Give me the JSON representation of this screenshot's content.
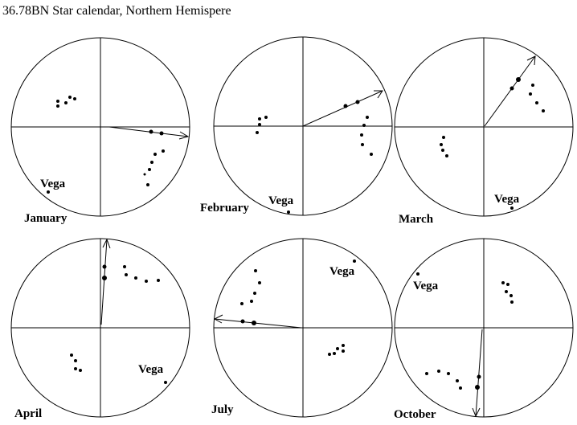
{
  "title": "36.78BN Star calendar, Northern Hemispere",
  "panels": [
    {
      "month": "January",
      "star_label": "Vega"
    },
    {
      "month": "February",
      "star_label": "Vega"
    },
    {
      "month": "March",
      "star_label": "Vega"
    },
    {
      "month": "April",
      "star_label": "Vega"
    },
    {
      "month": "July",
      "star_label": "Vega"
    },
    {
      "month": "October",
      "star_label": "Vega"
    }
  ]
}
